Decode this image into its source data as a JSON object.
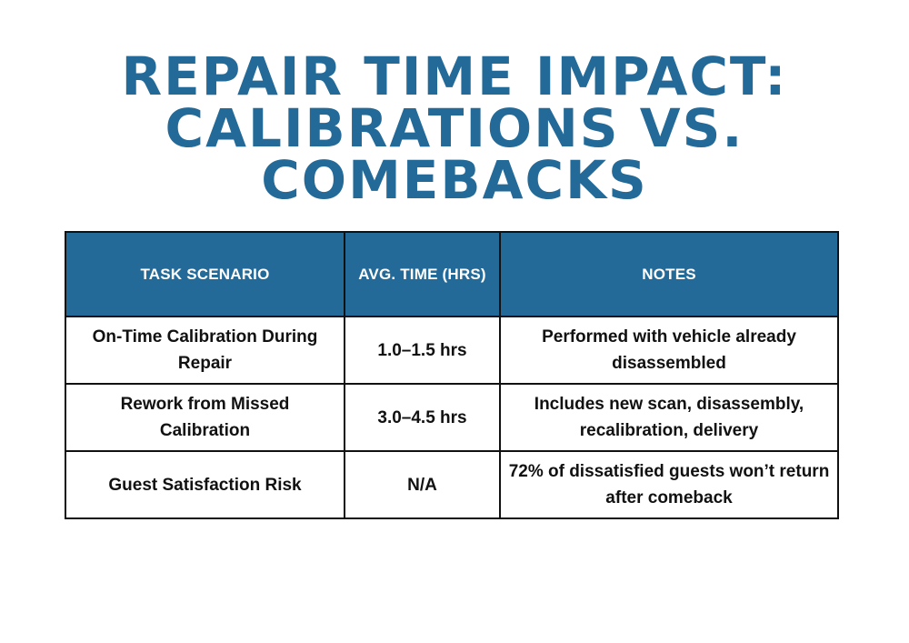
{
  "title": {
    "line1": "REPAIR TIME IMPACT:",
    "line2": "CALIBRATIONS VS.",
    "line3": "COMEBACKS"
  },
  "colors": {
    "accent": "#246a98",
    "text": "#111111",
    "background": "#ffffff"
  },
  "table": {
    "headers": [
      "TASK SCENARIO",
      "AVG. TIME (HRS)",
      "NOTES"
    ],
    "rows": [
      {
        "scenario": "On-Time Calibration During Repair",
        "time": "1.0–1.5 hrs",
        "notes": "Performed with vehicle already disassembled"
      },
      {
        "scenario": "Rework from Missed Calibration",
        "time": "3.0–4.5 hrs",
        "notes": "Includes new scan, disassembly, recalibration, delivery"
      },
      {
        "scenario": "Guest Satisfaction Risk",
        "time": "N/A",
        "notes": "72% of dissatisfied guests won’t return after comeback"
      }
    ]
  }
}
